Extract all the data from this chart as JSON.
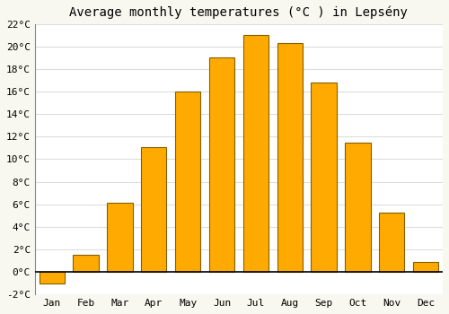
{
  "title": "Average monthly temperatures (°C ) in Lepsény",
  "months": [
    "Jan",
    "Feb",
    "Mar",
    "Apr",
    "May",
    "Jun",
    "Jul",
    "Aug",
    "Sep",
    "Oct",
    "Nov",
    "Dec"
  ],
  "values": [
    -1.0,
    1.5,
    6.1,
    11.1,
    16.0,
    19.0,
    21.0,
    20.3,
    16.8,
    11.5,
    5.3,
    0.9
  ],
  "bar_color": "#FFAA00",
  "bar_edge_color": "#806000",
  "background_color": "#f8f8f0",
  "plot_bg_color": "#ffffff",
  "grid_color": "#dddddd",
  "ylim": [
    -2,
    22
  ],
  "yticks": [
    -2,
    0,
    2,
    4,
    6,
    8,
    10,
    12,
    14,
    16,
    18,
    20,
    22
  ],
  "ytick_labels": [
    "-2°C",
    "0°C",
    "2°C",
    "4°C",
    "6°C",
    "8°C",
    "10°C",
    "12°C",
    "14°C",
    "16°C",
    "18°C",
    "20°C",
    "22°C"
  ],
  "title_fontsize": 10,
  "tick_fontsize": 8,
  "figsize": [
    5.0,
    3.5
  ],
  "dpi": 100
}
